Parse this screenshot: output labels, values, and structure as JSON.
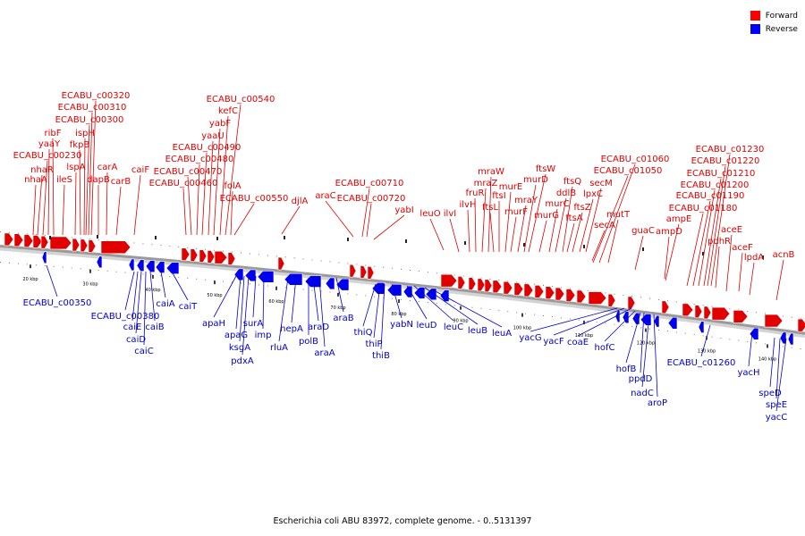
{
  "legend": {
    "forward": {
      "label": "Forward",
      "color": "#ff0000"
    },
    "reverse": {
      "label": "Reverse",
      "color": "#0000ff"
    }
  },
  "caption": "Escherichia coli ABU 83972, complete genome. - 0..5131397",
  "colors": {
    "forward": "#e00000",
    "reverse": "#0000ee",
    "backbone": "#9a9a9a"
  },
  "ticks": [
    "20 kbp",
    "30 kbp",
    "40 kbp",
    "50 kbp",
    "60 kbp",
    "70 kbp",
    "80 kbp",
    "90 kbp",
    "100 kbp",
    "110 kbp",
    "120 kbp",
    "130 kbp",
    "140 kbp"
  ],
  "forward_genes": [
    "nhaA",
    "nhaR",
    "ECABU_c00230",
    "yaaY",
    "ribF",
    "ileS",
    "lspA",
    "fkpB",
    "ispH",
    "ECABU_c00300",
    "ECABU_c00310",
    "ECABU_c00320",
    "dapB",
    "carA",
    "carB",
    "caiF",
    "ECABU_c00460",
    "ECABU_c00470",
    "ECABU_c00480",
    "ECABU_c00490",
    "yaaU",
    "yabF",
    "kefC",
    "ECABU_c00540",
    "folA",
    "ECABU_c00550",
    "djlA",
    "araC",
    "ECABU_c00710",
    "ECABU_c00720",
    "yabI",
    "leuO",
    "ilvI",
    "ilvH",
    "fruR",
    "mraZ",
    "mraW",
    "ftsL",
    "ftsI",
    "murE",
    "murF",
    "mraY",
    "murD",
    "ftsW",
    "murG",
    "murC",
    "ddlB",
    "ftsQ",
    "ftsA",
    "ftsZ",
    "lpxC",
    "secM",
    "secA",
    "mutT",
    "ECABU_c01050",
    "ECABU_c01060",
    "guaC",
    "ampD",
    "ampE",
    "ECABU_c01180",
    "ECABU_c01190",
    "ECABU_c01200",
    "ECABU_c01210",
    "ECABU_c01220",
    "ECABU_c01230",
    "pdhR",
    "aceE",
    "aceF",
    "lpdA",
    "acnB"
  ],
  "reverse_genes": [
    "ECABU_c00350",
    "ECABU_c00380",
    "caiE",
    "caiD",
    "caiC",
    "caiB",
    "caiA",
    "caiT",
    "apaH",
    "apaG",
    "ksgA",
    "pdxA",
    "surA",
    "imp",
    "rluA",
    "hepA",
    "polB",
    "araD",
    "araA",
    "araB",
    "thiQ",
    "thiP",
    "thiB",
    "yabN",
    "leuD",
    "leuC",
    "leuB",
    "leuA",
    "yacG",
    "yacF",
    "coaE",
    "hofC",
    "hofB",
    "ppdD",
    "nadC",
    "aroP",
    "ECABU_c01260",
    "yacH",
    "speD",
    "speE",
    "yacC"
  ]
}
